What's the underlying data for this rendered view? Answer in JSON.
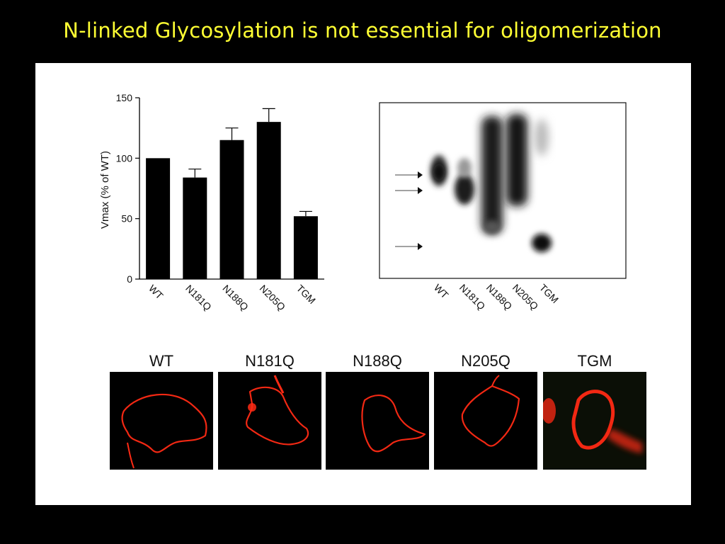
{
  "slide": {
    "title": "N-linked Glycosylation is not essential for oligomerization"
  },
  "chart_data": {
    "type": "bar",
    "categories": [
      "WT",
      "N181Q",
      "N188Q",
      "N205Q",
      "TGM"
    ],
    "values": [
      100,
      84,
      115,
      130,
      52
    ],
    "errors": [
      0,
      7,
      10,
      11,
      4
    ],
    "ylabel": "Vmax (% of WT)",
    "yticks": [
      0,
      50,
      100,
      150
    ],
    "ylim": [
      0,
      150
    ],
    "bar_color": "#000000"
  },
  "blot": {
    "lanes": [
      "WT",
      "N181Q",
      "N188Q",
      "N205Q",
      "TGM"
    ]
  },
  "micrographs": {
    "cells": [
      {
        "label": "WT",
        "background": "#000000"
      },
      {
        "label": "N181Q",
        "background": "#000000"
      },
      {
        "label": "N188Q",
        "background": "#000000"
      },
      {
        "label": "N205Q",
        "background": "#000000"
      },
      {
        "label": "TGM",
        "background": "#0b0f06"
      }
    ],
    "stain_color": "#ff2a14"
  }
}
